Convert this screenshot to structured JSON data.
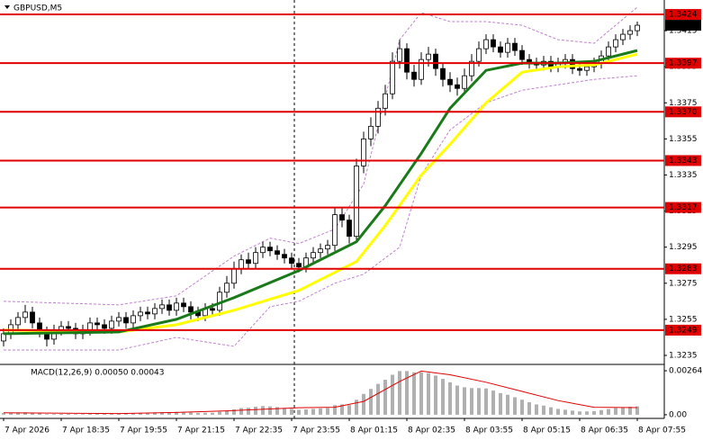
{
  "chart_data": {
    "type": "candlestick",
    "title": "GBPUSD,M5",
    "categories": [
      "7 Apr 2026",
      null,
      null,
      null,
      null,
      null,
      null,
      null,
      "7 Apr 18:35",
      null,
      null,
      null,
      null,
      null,
      null,
      null,
      "7 Apr 19:55",
      null,
      null,
      null,
      null,
      null,
      null,
      null,
      "7 Apr 21:15",
      null,
      null,
      null,
      null,
      null,
      null,
      null,
      "7 Apr 22:35",
      null,
      null,
      null,
      null,
      null,
      null,
      null,
      "7 Apr 23:55",
      null,
      null,
      null,
      null,
      null,
      null,
      null,
      "8 Apr 01:15",
      null,
      null,
      null,
      null,
      null,
      null,
      null,
      "8 Apr 02:35",
      null,
      null,
      null,
      null,
      null,
      null,
      null,
      "8 Apr 03:55",
      null,
      null,
      null,
      null,
      null,
      null,
      null,
      "8 Apr 05:15",
      null,
      null,
      null,
      null,
      null,
      null,
      null,
      "8 Apr 06:35",
      null,
      null,
      null,
      null,
      null,
      null,
      null,
      "8 Apr 07:55"
    ],
    "ohlc": [
      [
        1.3243,
        1.325,
        1.324,
        1.3247
      ],
      [
        1.3247,
        1.3255,
        1.3244,
        1.3252
      ],
      [
        1.3252,
        1.3259,
        1.3249,
        1.3256
      ],
      [
        1.3256,
        1.3263,
        1.3253,
        1.3259
      ],
      [
        1.3259,
        1.3262,
        1.325,
        1.3253
      ],
      [
        1.3253,
        1.3256,
        1.3245,
        1.3248
      ],
      [
        1.3248,
        1.3251,
        1.324,
        1.3244
      ],
      [
        1.3244,
        1.3252,
        1.3241,
        1.3249
      ],
      [
        1.3249,
        1.3254,
        1.3246,
        1.3251
      ],
      [
        1.3251,
        1.3254,
        1.3247,
        1.325
      ],
      [
        1.325,
        1.3253,
        1.3244,
        1.3247
      ],
      [
        1.3247,
        1.3252,
        1.3244,
        1.3249
      ],
      [
        1.3249,
        1.3256,
        1.3246,
        1.3253
      ],
      [
        1.3253,
        1.3256,
        1.3249,
        1.3252
      ],
      [
        1.3252,
        1.3255,
        1.3247,
        1.325
      ],
      [
        1.325,
        1.3257,
        1.3247,
        1.3254
      ],
      [
        1.3254,
        1.3259,
        1.3251,
        1.3256
      ],
      [
        1.3256,
        1.3259,
        1.325,
        1.3253
      ],
      [
        1.3253,
        1.326,
        1.325,
        1.3257
      ],
      [
        1.3257,
        1.3262,
        1.3254,
        1.3259
      ],
      [
        1.3259,
        1.3262,
        1.3255,
        1.3258
      ],
      [
        1.3258,
        1.3264,
        1.3255,
        1.3261
      ],
      [
        1.3261,
        1.3266,
        1.3258,
        1.3263
      ],
      [
        1.3263,
        1.3266,
        1.3257,
        1.326
      ],
      [
        1.326,
        1.3267,
        1.3257,
        1.3264
      ],
      [
        1.3264,
        1.3267,
        1.3259,
        1.3262
      ],
      [
        1.3262,
        1.3265,
        1.3255,
        1.3259
      ],
      [
        1.3259,
        1.3262,
        1.3254,
        1.3257
      ],
      [
        1.3257,
        1.3264,
        1.3254,
        1.3261
      ],
      [
        1.3261,
        1.3264,
        1.3257,
        1.326
      ],
      [
        1.326,
        1.3273,
        1.3257,
        1.327
      ],
      [
        1.327,
        1.3279,
        1.3267,
        1.3275
      ],
      [
        1.3275,
        1.3287,
        1.3272,
        1.3283
      ],
      [
        1.3283,
        1.3291,
        1.328,
        1.3288
      ],
      [
        1.3288,
        1.3292,
        1.3283,
        1.3286
      ],
      [
        1.3286,
        1.3295,
        1.3283,
        1.3292
      ],
      [
        1.3292,
        1.3298,
        1.3289,
        1.3295
      ],
      [
        1.3295,
        1.3298,
        1.329,
        1.3293
      ],
      [
        1.3293,
        1.3296,
        1.3288,
        1.3291
      ],
      [
        1.3291,
        1.3294,
        1.3286,
        1.3289
      ],
      [
        1.3289,
        1.3292,
        1.3283,
        1.3286
      ],
      [
        1.3286,
        1.3289,
        1.3281,
        1.3284
      ],
      [
        1.3284,
        1.3292,
        1.3281,
        1.3289
      ],
      [
        1.3289,
        1.3295,
        1.3286,
        1.3292
      ],
      [
        1.3292,
        1.3297,
        1.3289,
        1.3294
      ],
      [
        1.3294,
        1.3299,
        1.3291,
        1.3296
      ],
      [
        1.3296,
        1.3317,
        1.3293,
        1.3313
      ],
      [
        1.3313,
        1.3317,
        1.3306,
        1.331
      ],
      [
        1.331,
        1.3313,
        1.3297,
        1.3301
      ],
      [
        1.3301,
        1.3344,
        1.3298,
        1.334
      ],
      [
        1.334,
        1.3359,
        1.3336,
        1.3355
      ],
      [
        1.3355,
        1.3367,
        1.3351,
        1.3362
      ],
      [
        1.3362,
        1.3376,
        1.3358,
        1.3372
      ],
      [
        1.3372,
        1.3385,
        1.3368,
        1.338
      ],
      [
        1.338,
        1.3403,
        1.3377,
        1.3398
      ],
      [
        1.3398,
        1.341,
        1.3394,
        1.3405
      ],
      [
        1.3405,
        1.3408,
        1.3388,
        1.3392
      ],
      [
        1.3392,
        1.3396,
        1.3384,
        1.3388
      ],
      [
        1.3388,
        1.3403,
        1.3385,
        1.3399
      ],
      [
        1.3399,
        1.3406,
        1.3395,
        1.3402
      ],
      [
        1.3402,
        1.3405,
        1.339,
        1.3394
      ],
      [
        1.3394,
        1.3397,
        1.3384,
        1.3388
      ],
      [
        1.3388,
        1.3392,
        1.3381,
        1.3385
      ],
      [
        1.3385,
        1.3389,
        1.3379,
        1.3383
      ],
      [
        1.3383,
        1.3394,
        1.338,
        1.339
      ],
      [
        1.339,
        1.3402,
        1.3387,
        1.3398
      ],
      [
        1.3398,
        1.3409,
        1.3395,
        1.3405
      ],
      [
        1.3405,
        1.3413,
        1.3402,
        1.341
      ],
      [
        1.341,
        1.3413,
        1.3403,
        1.3406
      ],
      [
        1.3406,
        1.3409,
        1.34,
        1.3403
      ],
      [
        1.3403,
        1.3411,
        1.34,
        1.3408
      ],
      [
        1.3408,
        1.3411,
        1.3401,
        1.3404
      ],
      [
        1.3404,
        1.3407,
        1.3396,
        1.3399
      ],
      [
        1.3399,
        1.3402,
        1.3394,
        1.3397
      ],
      [
        1.3397,
        1.34,
        1.3393,
        1.3396
      ],
      [
        1.3396,
        1.3401,
        1.3393,
        1.3398
      ],
      [
        1.3398,
        1.3401,
        1.3392,
        1.3395
      ],
      [
        1.3395,
        1.34,
        1.3392,
        1.3397
      ],
      [
        1.3397,
        1.3402,
        1.3394,
        1.3399
      ],
      [
        1.3399,
        1.3402,
        1.3391,
        1.3394
      ],
      [
        1.3394,
        1.3397,
        1.339,
        1.3393
      ],
      [
        1.3393,
        1.3398,
        1.339,
        1.3395
      ],
      [
        1.3395,
        1.34,
        1.3392,
        1.3397
      ],
      [
        1.3397,
        1.3404,
        1.3394,
        1.3401
      ],
      [
        1.3401,
        1.3409,
        1.3398,
        1.3406
      ],
      [
        1.3406,
        1.3413,
        1.3403,
        1.341
      ],
      [
        1.341,
        1.3416,
        1.3407,
        1.3413
      ],
      [
        1.3413,
        1.3418,
        1.341,
        1.3415
      ],
      [
        1.3415,
        1.342,
        1.3412,
        1.3418
      ]
    ],
    "ylim": [
      1.323,
      1.3432
    ],
    "yticks": [
      1.3235,
      1.3255,
      1.3275,
      1.3295,
      1.3315,
      1.3335,
      1.3355,
      1.3375,
      1.3395,
      1.3415
    ],
    "levels": [
      1.3424,
      1.3397,
      {
        "value": 1.337,
        "label": "1.3370"
      },
      1.3343,
      1.3317,
      1.3283,
      1.3249
    ],
    "level_color": "#e00000",
    "current_price": 1.3418,
    "overlays": [
      {
        "color": "#ffff00",
        "width": 3,
        "dash": false,
        "x": [
          0,
          16,
          24,
          32,
          41,
          49,
          53,
          58,
          62,
          67,
          72,
          77,
          82,
          88
        ],
        "values": [
          1.3249,
          1.3248,
          1.3252,
          1.326,
          1.3271,
          1.3287,
          1.3307,
          1.3335,
          1.3352,
          1.3375,
          1.3392,
          1.3395,
          1.3396,
          1.3402
        ]
      },
      {
        "color": "#1a7a1a",
        "width": 3,
        "dash": false,
        "x": [
          0,
          16,
          24,
          32,
          41,
          49,
          53,
          58,
          62,
          67,
          72,
          77,
          82,
          88
        ],
        "values": [
          1.3247,
          1.3248,
          1.3255,
          1.3267,
          1.3282,
          1.3298,
          1.3318,
          1.3347,
          1.3372,
          1.3393,
          1.3397,
          1.3397,
          1.3398,
          1.3404
        ]
      },
      {
        "color": "#c080d0",
        "width": 1,
        "dash": true,
        "x": [
          0,
          16,
          24,
          32,
          37,
          41,
          46,
          50,
          55,
          58,
          62,
          67,
          72,
          77,
          82,
          88
        ],
        "values": [
          1.3265,
          1.3263,
          1.3268,
          1.329,
          1.33,
          1.3297,
          1.3305,
          1.333,
          1.341,
          1.3425,
          1.342,
          1.342,
          1.3418,
          1.341,
          1.3408,
          1.3428
        ]
      },
      {
        "color": "#c080d0",
        "width": 1,
        "dash": true,
        "x": [
          0,
          16,
          24,
          32,
          37,
          41,
          46,
          50,
          55,
          58,
          62,
          67,
          72,
          77,
          82,
          88
        ],
        "values": [
          1.3238,
          1.3238,
          1.3245,
          1.324,
          1.3262,
          1.3265,
          1.3275,
          1.328,
          1.3295,
          1.3335,
          1.336,
          1.3375,
          1.3382,
          1.3385,
          1.3388,
          1.339
        ]
      }
    ],
    "macd": {
      "title": "MACD(12,26,9) 0.00050 0.00043",
      "ylim": [
        -0.00022,
        0.00302
      ],
      "yticks": [
        0.00264,
        {
          "value": 0,
          "label": "0.00"
        }
      ],
      "bar_color": "#b0b0b0",
      "signal_color": "#e00000",
      "values": [
        0.0001,
        0.00012,
        0.00014,
        0.00015,
        0.00012,
        8e-05,
        4e-05,
        4e-05,
        5e-05,
        5e-05,
        4e-05,
        4e-05,
        6e-05,
        6e-05,
        5e-05,
        7e-05,
        9e-05,
        8e-05,
        0.0001,
        0.00012,
        0.00012,
        0.00014,
        0.00016,
        0.00015,
        0.00017,
        0.00016,
        0.00013,
        0.00011,
        0.00012,
        0.00012,
        0.00018,
        0.00024,
        0.00032,
        0.0004,
        0.00042,
        0.00048,
        0.00052,
        0.0005,
        0.00046,
        0.00041,
        0.00035,
        0.0003,
        0.00032,
        0.00035,
        0.00038,
        0.0004,
        0.00058,
        0.00062,
        0.00058,
        0.0009,
        0.00125,
        0.00155,
        0.00185,
        0.0021,
        0.0024,
        0.00262,
        0.00262,
        0.00255,
        0.00255,
        0.0025,
        0.00235,
        0.00215,
        0.00195,
        0.00175,
        0.00165,
        0.0016,
        0.0016,
        0.00158,
        0.00145,
        0.0013,
        0.0012,
        0.00105,
        0.0009,
        0.00075,
        0.00062,
        0.00055,
        0.00045,
        0.00035,
        0.0003,
        0.00025,
        0.0002,
        0.0002,
        0.00022,
        0.00028,
        0.00034,
        0.0004,
        0.00045,
        0.00048,
        0.0005
      ],
      "signal_x": [
        0,
        16,
        24,
        32,
        41,
        46,
        50,
        55,
        58,
        62,
        67,
        72,
        77,
        82,
        88
      ],
      "signal": [
        0.00012,
        7e-05,
        0.00014,
        0.00025,
        0.00042,
        0.00045,
        0.0008,
        0.002,
        0.00262,
        0.0024,
        0.00195,
        0.0014,
        0.00085,
        0.00045,
        0.00043
      ]
    }
  }
}
